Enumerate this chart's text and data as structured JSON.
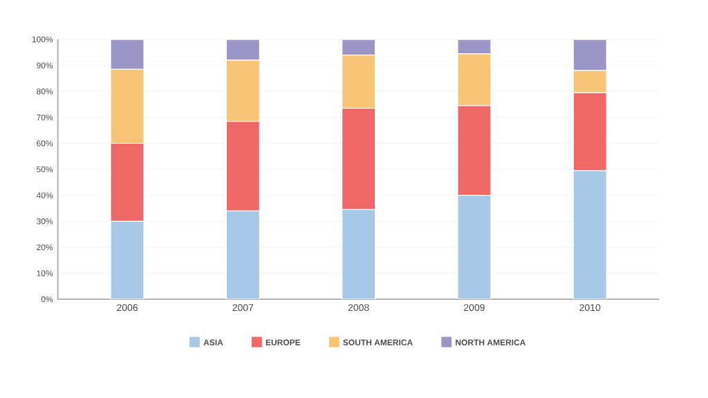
{
  "chart_data": {
    "type": "bar",
    "stacked": true,
    "categories": [
      "2006",
      "2007",
      "2008",
      "2009",
      "2010"
    ],
    "series": [
      {
        "name": "ASIA",
        "color": "#a8c8e8",
        "values": [
          30,
          34,
          34.5,
          40,
          49.5
        ]
      },
      {
        "name": "EUROPE",
        "color": "#ee6868",
        "values": [
          30,
          34.5,
          39,
          34.5,
          30
        ]
      },
      {
        "name": "SOUTH AMERICA",
        "color": "#f8c476",
        "values": [
          28.5,
          23.5,
          20.5,
          20,
          8.5
        ]
      },
      {
        "name": "NORTH AMERICA",
        "color": "#9b96c6",
        "values": [
          11.5,
          8,
          6,
          5.5,
          12
        ]
      }
    ],
    "ylim": [
      0,
      100
    ],
    "yticks": [
      {
        "value": 0,
        "label": "0%"
      },
      {
        "value": 10,
        "label": "10%"
      },
      {
        "value": 20,
        "label": "20%"
      },
      {
        "value": 30,
        "label": "30%"
      },
      {
        "value": 40,
        "label": "40%"
      },
      {
        "value": 50,
        "label": "50%"
      },
      {
        "value": 60,
        "label": "60%"
      },
      {
        "value": 70,
        "label": "70%"
      },
      {
        "value": 80,
        "label": "80%"
      },
      {
        "value": 90,
        "label": "90%"
      },
      {
        "value": 100,
        "label": "100%"
      }
    ],
    "grid": "y",
    "legend": "bottom"
  }
}
